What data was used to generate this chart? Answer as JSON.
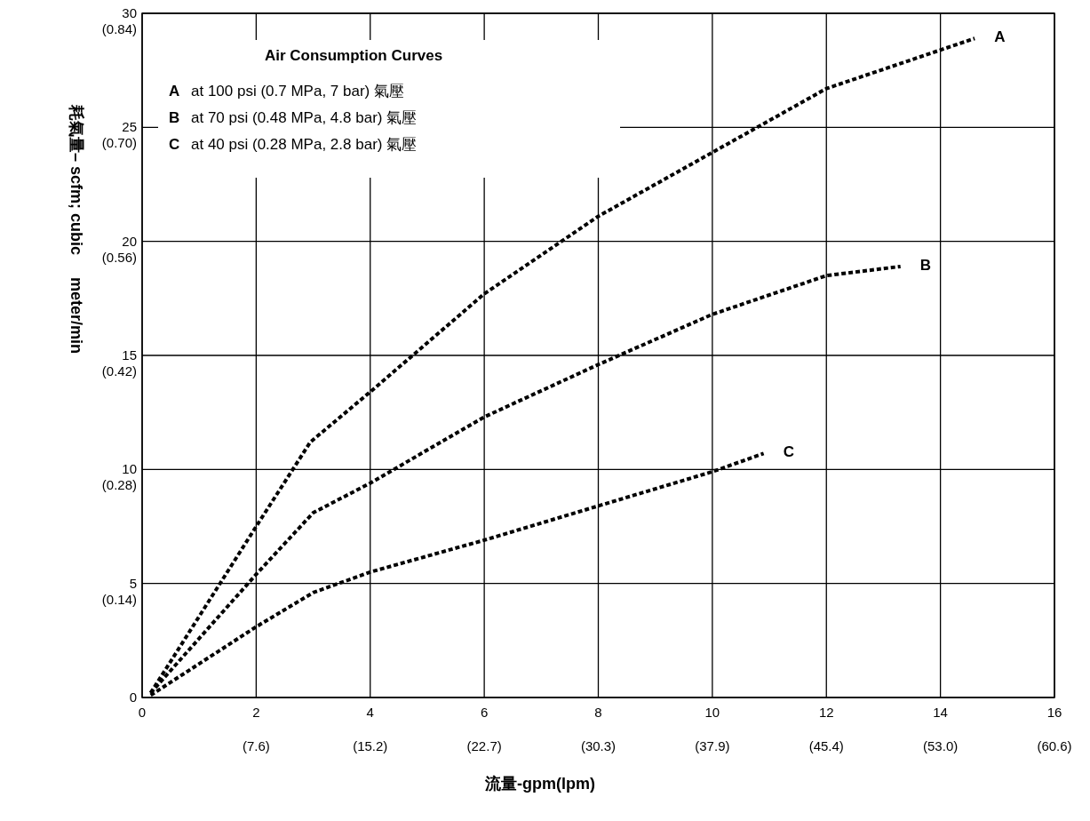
{
  "chart_data": {
    "type": "line",
    "xlabel": "流量-gpm(lpm)",
    "ylabel": "耗氣量– scfm; cubic     meter/min",
    "xlim": [
      0,
      16
    ],
    "ylim": [
      0,
      30
    ],
    "xticks": [
      0,
      2,
      4,
      6,
      8,
      10,
      12,
      14,
      16
    ],
    "yticks": [
      0,
      5,
      10,
      15,
      20,
      25,
      30
    ],
    "grid": true,
    "marker": "none",
    "line_style": "dashed",
    "annotations": [
      "Air Consumption Curves",
      "A at 100 psi (0.7 MPa, 7 bar) 氣壓",
      "B at 70 psi (0.48 MPa, 4.8 bar) 氣壓",
      "C at 40 psi (0.28 MPa, 2.8 bar) 氣壓",
      "(7.6)",
      "(15.2)",
      "(22.7)",
      "(30.3)",
      "(37.9)",
      "(45.4)",
      "(53.0)",
      "(60.6)",
      "(0.14)",
      "(0.28)",
      "(0.42)",
      "(0.56)",
      "(0.70)",
      "(0.84)"
    ],
    "series": [
      {
        "name": "A",
        "color": "#000000",
        "x": [
          0.15,
          2,
          2.95,
          4,
          6,
          8,
          10,
          12,
          14.6
        ],
        "values": [
          0.2,
          7.5,
          11.2,
          13.4,
          17.7,
          21.1,
          23.9,
          26.7,
          28.9
        ]
      },
      {
        "name": "B",
        "color": "#000000",
        "x": [
          0.15,
          2,
          3,
          4,
          6,
          8,
          10,
          12,
          13.3
        ],
        "values": [
          0.2,
          5.4,
          8.1,
          9.4,
          12.3,
          14.6,
          16.8,
          18.5,
          18.9
        ]
      },
      {
        "name": "C",
        "color": "#000000",
        "x": [
          0.15,
          2,
          3,
          4,
          6,
          8,
          10,
          10.9
        ],
        "values": [
          0.1,
          3.1,
          4.6,
          5.5,
          6.9,
          8.4,
          9.9,
          10.7
        ]
      }
    ]
  }
}
